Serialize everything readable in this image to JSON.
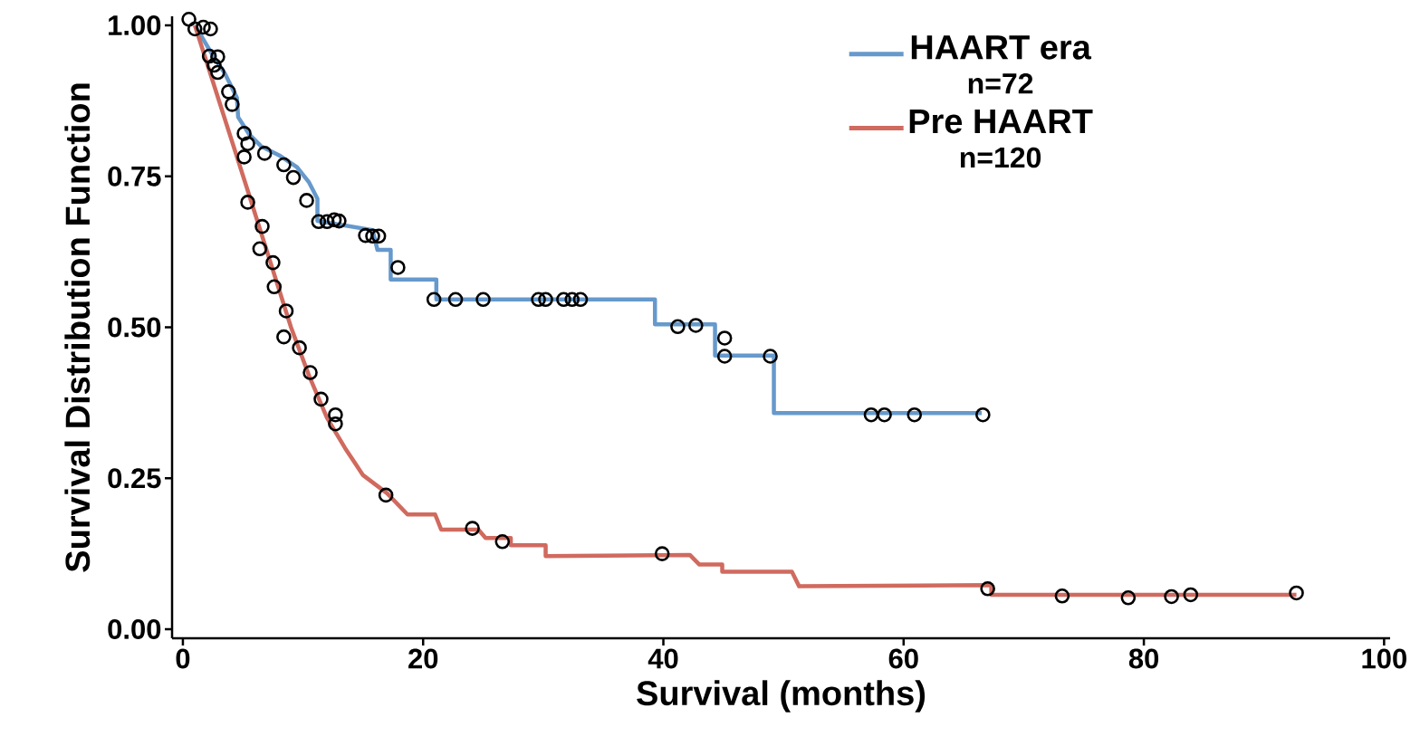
{
  "chart_data": {
    "type": "line",
    "xlabel": "Survival (months)",
    "ylabel": "Survival Distribution Function",
    "xlim": [
      -0.9,
      100.5
    ],
    "ylim": [
      -0.015,
      1.015
    ],
    "xticks": [
      0,
      20,
      40,
      60,
      80,
      100
    ],
    "yticks": [
      {
        "value": 0,
        "label": "0.00"
      },
      {
        "value": 0.25,
        "label": "0.25"
      },
      {
        "value": 0.5,
        "label": "0.50"
      },
      {
        "value": 0.75,
        "label": "0.75"
      },
      {
        "value": 1,
        "label": "1.00"
      }
    ],
    "legend": "top right",
    "grid": false,
    "line_style": "solid",
    "annotations": [
      "n=72",
      "n=120"
    ],
    "series": [
      {
        "name": "HAART era",
        "color": "#6699cc",
        "x": [
          1,
          2.5,
          3.5,
          4.5,
          4.6,
          5.5,
          6.5,
          8,
          9.5,
          10.5,
          11.2,
          11.2,
          15.8,
          16.2,
          17.3,
          17.3,
          21.1,
          21.1,
          39.3,
          39.3,
          44.3,
          44.3,
          49.2,
          49.2,
          66.5
        ],
        "values": [
          1.0,
          0.95,
          0.92,
          0.88,
          0.848,
          0.82,
          0.8,
          0.785,
          0.765,
          0.74,
          0.713,
          0.676,
          0.661,
          0.628,
          0.628,
          0.579,
          0.579,
          0.546,
          0.546,
          0.505,
          0.505,
          0.453,
          0.453,
          0.358,
          0.358
        ]
      },
      {
        "name": "Pre HAART",
        "color": "#d06a5f",
        "x": [
          1,
          5.5,
          9,
          10.5,
          12,
          13.5,
          15,
          17,
          18.7,
          21.0,
          21.5,
          24.6,
          25.2,
          27.3,
          27.3,
          30.2,
          30.2,
          42.2,
          43,
          44.9,
          44.9,
          50.7,
          51.3,
          67.3,
          67.3,
          92.7
        ],
        "values": [
          1.0,
          0.72,
          0.5,
          0.42,
          0.35,
          0.3,
          0.255,
          0.225,
          0.19,
          0.19,
          0.165,
          0.165,
          0.151,
          0.151,
          0.139,
          0.139,
          0.121,
          0.123,
          0.107,
          0.107,
          0.095,
          0.095,
          0.071,
          0.073,
          0.057,
          0.057
        ]
      },
      {
        "type": "scatter",
        "marker": "circle",
        "color": "#000000",
        "x": [
          0.5,
          1.0,
          1.7,
          2.3,
          2.2,
          2.9,
          2.6,
          2.9,
          3.8,
          4.1,
          5.1,
          5.4,
          5.1,
          6.8,
          8.4,
          9.2,
          10.3,
          11.3,
          12.0,
          12.6,
          13.0,
          15.2,
          15.8,
          16.3,
          17.9,
          20.9,
          22.7,
          25.0,
          29.6,
          30.2,
          31.7,
          32.4,
          33.1,
          41.2,
          42.7,
          45.1,
          45.1,
          48.9,
          57.3,
          58.4,
          60.9,
          66.6,
          5.4,
          6.6,
          6.4,
          7.5,
          7.6,
          8.6,
          8.4,
          9.7,
          10.6,
          11.5,
          12.7,
          12.7,
          16.9,
          24.1,
          26.6,
          39.9,
          67.0,
          73.2,
          78.7,
          82.3,
          83.9,
          92.7
        ],
        "values": [
          1.01,
          0.994,
          0.997,
          0.994,
          0.949,
          0.948,
          0.934,
          0.922,
          0.89,
          0.869,
          0.821,
          0.804,
          0.782,
          0.788,
          0.769,
          0.748,
          0.71,
          0.675,
          0.675,
          0.678,
          0.676,
          0.652,
          0.651,
          0.651,
          0.599,
          0.546,
          0.546,
          0.546,
          0.546,
          0.546,
          0.546,
          0.546,
          0.546,
          0.501,
          0.503,
          0.482,
          0.452,
          0.452,
          0.355,
          0.355,
          0.355,
          0.355,
          0.707,
          0.667,
          0.63,
          0.607,
          0.567,
          0.527,
          0.484,
          0.466,
          0.425,
          0.381,
          0.355,
          0.34,
          0.222,
          0.167,
          0.145,
          0.125,
          0.067,
          0.055,
          0.052,
          0.054,
          0.057,
          0.06
        ]
      }
    ]
  }
}
